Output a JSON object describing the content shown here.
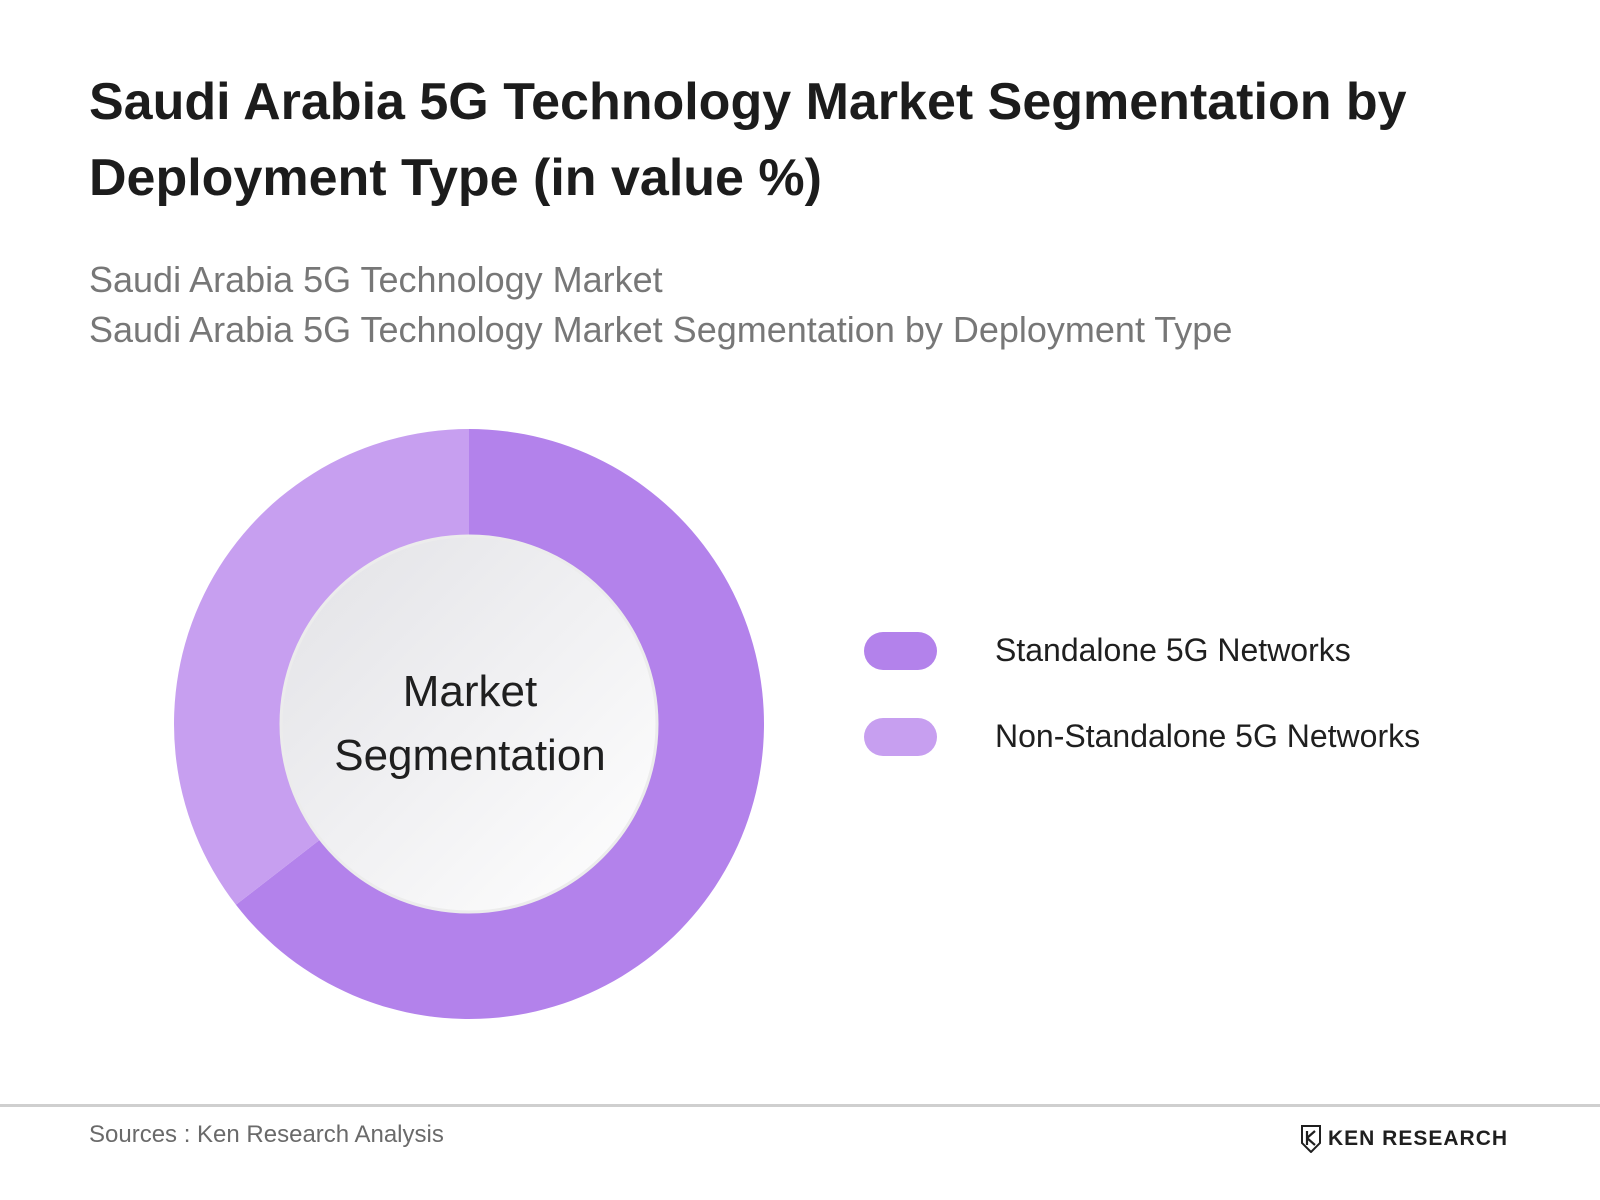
{
  "header": {
    "title": "Saudi Arabia 5G Technology Market Segmentation by Deployment Type (in value %)",
    "subtitle_line1": "Saudi Arabia 5G Technology Market",
    "subtitle_line2": "Saudi Arabia 5G Technology Market Segmentation by Deployment Type"
  },
  "chart_data": {
    "type": "pie",
    "donut": true,
    "center_label": "Market Segmentation",
    "series": [
      {
        "name": "Standalone 5G Networks",
        "value": 64.5,
        "color": "#b382eb"
      },
      {
        "name": "Non-Standalone 5G Networks",
        "value": 35.5,
        "color": "#c79ff0"
      }
    ],
    "legend_position": "right"
  },
  "footer": {
    "source": "Sources : Ken Research Analysis",
    "brand": "KEN RESEARCH"
  }
}
